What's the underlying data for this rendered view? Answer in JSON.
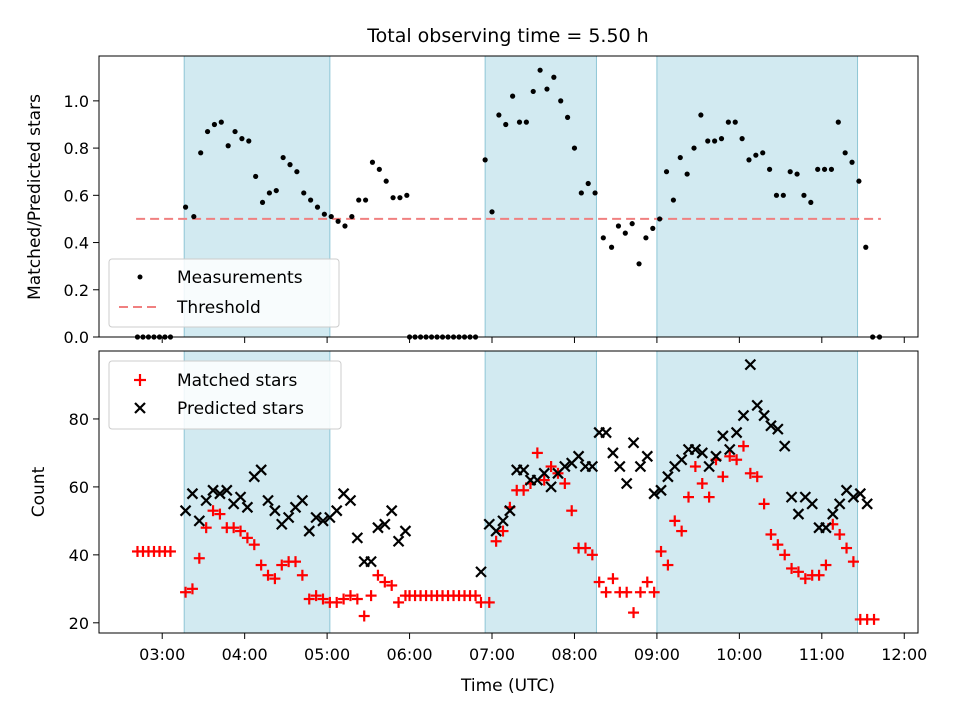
{
  "figure": {
    "title": "Total observing time = 5.50 h"
  },
  "colors": {
    "band_fill": "#add8e6",
    "band_edge": "#8fc6d6",
    "measurement": "#000000",
    "threshold": "#f08080",
    "matched": "#ff0000",
    "predicted": "#000000"
  },
  "chart_data": [
    {
      "type": "scatter",
      "panel": "top",
      "ylabel": "Matched/Predicted stars",
      "xlabel": "",
      "xlim": [
        "02:14",
        "12:10"
      ],
      "ylim": [
        0,
        1.19
      ],
      "yticks": [
        0.0,
        0.2,
        0.4,
        0.6,
        0.8,
        1.0
      ],
      "ytick_labels": [
        "0.0",
        "0.2",
        "0.4",
        "0.6",
        "0.8",
        "1.0"
      ],
      "grid": false,
      "legend_position": "lower-left",
      "legend": [
        "Measurements",
        "Threshold"
      ],
      "shaded_intervals": [
        [
          "03:16",
          "05:02"
        ],
        [
          "06:55",
          "08:16"
        ],
        [
          "09:00",
          "11:26"
        ]
      ],
      "threshold": {
        "value": 0.5,
        "x_start": "02:41",
        "x_end": "11:43"
      },
      "measurements": [
        [
          "02:42",
          0.0
        ],
        [
          "02:46",
          0.0
        ],
        [
          "02:50",
          0.0
        ],
        [
          "02:54",
          0.0
        ],
        [
          "02:58",
          0.0
        ],
        [
          "03:02",
          0.0
        ],
        [
          "03:06",
          0.0
        ],
        [
          "03:17",
          0.55
        ],
        [
          "03:23",
          0.51
        ],
        [
          "03:28",
          0.78
        ],
        [
          "03:33",
          0.87
        ],
        [
          "03:38",
          0.9
        ],
        [
          "03:43",
          0.91
        ],
        [
          "03:48",
          0.81
        ],
        [
          "03:53",
          0.87
        ],
        [
          "03:58",
          0.84
        ],
        [
          "04:03",
          0.83
        ],
        [
          "04:08",
          0.68
        ],
        [
          "04:13",
          0.57
        ],
        [
          "04:18",
          0.61
        ],
        [
          "04:23",
          0.62
        ],
        [
          "04:28",
          0.76
        ],
        [
          "04:33",
          0.73
        ],
        [
          "04:38",
          0.7
        ],
        [
          "04:43",
          0.61
        ],
        [
          "04:48",
          0.58
        ],
        [
          "04:53",
          0.55
        ],
        [
          "04:58",
          0.52
        ],
        [
          "05:03",
          0.51
        ],
        [
          "05:08",
          0.49
        ],
        [
          "05:13",
          0.47
        ],
        [
          "05:18",
          0.51
        ],
        [
          "05:23",
          0.58
        ],
        [
          "05:28",
          0.58
        ],
        [
          "05:33",
          0.74
        ],
        [
          "05:38",
          0.71
        ],
        [
          "05:43",
          0.66
        ],
        [
          "05:48",
          0.59
        ],
        [
          "05:53",
          0.59
        ],
        [
          "05:58",
          0.6
        ],
        [
          "06:00",
          0.0
        ],
        [
          "06:04",
          0.0
        ],
        [
          "06:08",
          0.0
        ],
        [
          "06:12",
          0.0
        ],
        [
          "06:16",
          0.0
        ],
        [
          "06:20",
          0.0
        ],
        [
          "06:24",
          0.0
        ],
        [
          "06:28",
          0.0
        ],
        [
          "06:32",
          0.0
        ],
        [
          "06:36",
          0.0
        ],
        [
          "06:40",
          0.0
        ],
        [
          "06:44",
          0.0
        ],
        [
          "06:48",
          0.0
        ],
        [
          "06:55",
          0.75
        ],
        [
          "07:00",
          0.53
        ],
        [
          "07:05",
          0.94
        ],
        [
          "07:10",
          0.9
        ],
        [
          "07:15",
          1.02
        ],
        [
          "07:20",
          0.91
        ],
        [
          "07:25",
          0.91
        ],
        [
          "07:30",
          1.04
        ],
        [
          "07:35",
          1.13
        ],
        [
          "07:40",
          1.05
        ],
        [
          "07:45",
          1.1
        ],
        [
          "07:50",
          1.0
        ],
        [
          "07:55",
          0.93
        ],
        [
          "08:00",
          0.8
        ],
        [
          "08:05",
          0.61
        ],
        [
          "08:10",
          0.65
        ],
        [
          "08:15",
          0.61
        ],
        [
          "08:21",
          0.42
        ],
        [
          "08:27",
          0.38
        ],
        [
          "08:32",
          0.47
        ],
        [
          "08:37",
          0.44
        ],
        [
          "08:42",
          0.48
        ],
        [
          "08:47",
          0.31
        ],
        [
          "08:52",
          0.42
        ],
        [
          "08:57",
          0.46
        ],
        [
          "09:02",
          0.5
        ],
        [
          "09:07",
          0.7
        ],
        [
          "09:12",
          0.58
        ],
        [
          "09:17",
          0.76
        ],
        [
          "09:22",
          0.69
        ],
        [
          "09:27",
          0.8
        ],
        [
          "09:32",
          0.94
        ],
        [
          "09:37",
          0.83
        ],
        [
          "09:42",
          0.83
        ],
        [
          "09:47",
          0.84
        ],
        [
          "09:52",
          0.91
        ],
        [
          "09:57",
          0.91
        ],
        [
          "10:02",
          0.84
        ],
        [
          "10:07",
          0.75
        ],
        [
          "10:12",
          0.77
        ],
        [
          "10:17",
          0.78
        ],
        [
          "10:22",
          0.71
        ],
        [
          "10:27",
          0.6
        ],
        [
          "10:32",
          0.6
        ],
        [
          "10:37",
          0.7
        ],
        [
          "10:42",
          0.69
        ],
        [
          "10:47",
          0.6
        ],
        [
          "10:52",
          0.57
        ],
        [
          "10:57",
          0.71
        ],
        [
          "11:02",
          0.71
        ],
        [
          "11:07",
          0.71
        ],
        [
          "11:12",
          0.91
        ],
        [
          "11:17",
          0.78
        ],
        [
          "11:22",
          0.74
        ],
        [
          "11:27",
          0.66
        ],
        [
          "11:32",
          0.38
        ],
        [
          "11:37",
          0.0
        ],
        [
          "11:42",
          0.0
        ]
      ]
    },
    {
      "type": "scatter",
      "panel": "bottom",
      "ylabel": "Count",
      "xlabel": "Time (UTC)",
      "xlim": [
        "02:14",
        "12:10"
      ],
      "ylim": [
        17,
        100
      ],
      "yticks": [
        20,
        40,
        60,
        80
      ],
      "ytick_labels": [
        "20",
        "40",
        "60",
        "80"
      ],
      "xticks": [
        "03:00",
        "04:00",
        "05:00",
        "06:00",
        "07:00",
        "08:00",
        "09:00",
        "10:00",
        "11:00",
        "12:00"
      ],
      "xtick_labels": [
        "03:00",
        "04:00",
        "05:00",
        "06:00",
        "07:00",
        "08:00",
        "09:00",
        "10:00",
        "11:00",
        "12:00"
      ],
      "grid": false,
      "legend_position": "upper-left",
      "legend": [
        "Matched stars",
        "Predicted stars"
      ],
      "shaded_intervals": [
        [
          "03:16",
          "05:02"
        ],
        [
          "06:55",
          "08:16"
        ],
        [
          "09:00",
          "11:26"
        ]
      ],
      "matched": [
        [
          "02:42",
          41
        ],
        [
          "02:46",
          41
        ],
        [
          "02:50",
          41
        ],
        [
          "02:54",
          41
        ],
        [
          "02:58",
          41
        ],
        [
          "03:02",
          41
        ],
        [
          "03:06",
          41
        ],
        [
          "03:17",
          29
        ],
        [
          "03:22",
          30
        ],
        [
          "03:27",
          39
        ],
        [
          "03:32",
          48
        ],
        [
          "03:37",
          53
        ],
        [
          "03:42",
          52
        ],
        [
          "03:47",
          48
        ],
        [
          "03:52",
          48
        ],
        [
          "03:57",
          47
        ],
        [
          "04:02",
          45
        ],
        [
          "04:07",
          43
        ],
        [
          "04:12",
          37
        ],
        [
          "04:17",
          34
        ],
        [
          "04:22",
          33
        ],
        [
          "04:27",
          37
        ],
        [
          "04:32",
          38
        ],
        [
          "04:37",
          38
        ],
        [
          "04:42",
          34
        ],
        [
          "04:47",
          27
        ],
        [
          "04:52",
          28
        ],
        [
          "04:57",
          27
        ],
        [
          "05:02",
          26
        ],
        [
          "05:07",
          26
        ],
        [
          "05:12",
          27
        ],
        [
          "05:17",
          28
        ],
        [
          "05:22",
          27
        ],
        [
          "05:27",
          22
        ],
        [
          "05:32",
          28
        ],
        [
          "05:37",
          34
        ],
        [
          "05:42",
          32
        ],
        [
          "05:47",
          31
        ],
        [
          "05:52",
          26
        ],
        [
          "05:57",
          28
        ],
        [
          "06:00",
          28
        ],
        [
          "06:04",
          28
        ],
        [
          "06:08",
          28
        ],
        [
          "06:12",
          28
        ],
        [
          "06:16",
          28
        ],
        [
          "06:20",
          28
        ],
        [
          "06:24",
          28
        ],
        [
          "06:28",
          28
        ],
        [
          "06:32",
          28
        ],
        [
          "06:36",
          28
        ],
        [
          "06:40",
          28
        ],
        [
          "06:44",
          28
        ],
        [
          "06:48",
          28
        ],
        [
          "06:52",
          26
        ],
        [
          "06:58",
          26
        ],
        [
          "07:03",
          44
        ],
        [
          "07:08",
          47
        ],
        [
          "07:13",
          54
        ],
        [
          "07:18",
          59
        ],
        [
          "07:23",
          59
        ],
        [
          "07:28",
          61
        ],
        [
          "07:33",
          70
        ],
        [
          "07:38",
          62
        ],
        [
          "07:43",
          66
        ],
        [
          "07:48",
          64
        ],
        [
          "07:53",
          61
        ],
        [
          "07:58",
          53
        ],
        [
          "08:03",
          42
        ],
        [
          "08:08",
          42
        ],
        [
          "08:13",
          40
        ],
        [
          "08:18",
          32
        ],
        [
          "08:23",
          29
        ],
        [
          "08:28",
          33
        ],
        [
          "08:33",
          29
        ],
        [
          "08:38",
          29
        ],
        [
          "08:43",
          23
        ],
        [
          "08:48",
          29
        ],
        [
          "08:53",
          32
        ],
        [
          "08:58",
          29
        ],
        [
          "09:03",
          41
        ],
        [
          "09:08",
          37
        ],
        [
          "09:13",
          50
        ],
        [
          "09:18",
          47
        ],
        [
          "09:23",
          57
        ],
        [
          "09:28",
          66
        ],
        [
          "09:33",
          61
        ],
        [
          "09:38",
          57
        ],
        [
          "09:43",
          68
        ],
        [
          "09:48",
          63
        ],
        [
          "09:53",
          69
        ],
        [
          "09:58",
          68
        ],
        [
          "10:03",
          72
        ],
        [
          "10:08",
          64
        ],
        [
          "10:13",
          63
        ],
        [
          "10:18",
          55
        ],
        [
          "10:23",
          46
        ],
        [
          "10:28",
          43
        ],
        [
          "10:33",
          40
        ],
        [
          "10:38",
          36
        ],
        [
          "10:43",
          35
        ],
        [
          "10:48",
          33
        ],
        [
          "10:53",
          34
        ],
        [
          "10:58",
          34
        ],
        [
          "11:03",
          37
        ],
        [
          "11:08",
          49
        ],
        [
          "11:13",
          46
        ],
        [
          "11:18",
          42
        ],
        [
          "11:23",
          38
        ],
        [
          "11:28",
          21
        ],
        [
          "11:33",
          21
        ],
        [
          "11:38",
          21
        ]
      ],
      "predicted": [
        [
          "03:17",
          53
        ],
        [
          "03:22",
          58
        ],
        [
          "03:27",
          50
        ],
        [
          "03:32",
          56
        ],
        [
          "03:37",
          59
        ],
        [
          "03:42",
          58
        ],
        [
          "03:47",
          59
        ],
        [
          "03:52",
          55
        ],
        [
          "03:57",
          57
        ],
        [
          "04:02",
          54
        ],
        [
          "04:07",
          63
        ],
        [
          "04:12",
          65
        ],
        [
          "04:17",
          56
        ],
        [
          "04:22",
          53
        ],
        [
          "04:27",
          49
        ],
        [
          "04:32",
          51
        ],
        [
          "04:37",
          54
        ],
        [
          "04:42",
          56
        ],
        [
          "04:47",
          47
        ],
        [
          "04:52",
          51
        ],
        [
          "04:57",
          50
        ],
        [
          "05:02",
          51
        ],
        [
          "05:07",
          53
        ],
        [
          "05:12",
          58
        ],
        [
          "05:17",
          56
        ],
        [
          "05:22",
          45
        ],
        [
          "05:27",
          38
        ],
        [
          "05:32",
          38
        ],
        [
          "05:37",
          48
        ],
        [
          "05:42",
          49
        ],
        [
          "05:47",
          53
        ],
        [
          "05:52",
          44
        ],
        [
          "05:57",
          47
        ],
        [
          "06:52",
          35
        ],
        [
          "06:58",
          49
        ],
        [
          "07:03",
          47
        ],
        [
          "07:08",
          50
        ],
        [
          "07:13",
          53
        ],
        [
          "07:18",
          65
        ],
        [
          "07:23",
          65
        ],
        [
          "07:28",
          62
        ],
        [
          "07:33",
          62
        ],
        [
          "07:38",
          64
        ],
        [
          "07:43",
          60
        ],
        [
          "07:48",
          64
        ],
        [
          "07:53",
          66
        ],
        [
          "07:58",
          67
        ],
        [
          "08:03",
          69
        ],
        [
          "08:08",
          66
        ],
        [
          "08:13",
          66
        ],
        [
          "08:18",
          76
        ],
        [
          "08:23",
          76
        ],
        [
          "08:28",
          70
        ],
        [
          "08:33",
          66
        ],
        [
          "08:38",
          61
        ],
        [
          "08:43",
          73
        ],
        [
          "08:48",
          66
        ],
        [
          "08:53",
          69
        ],
        [
          "08:58",
          58
        ],
        [
          "09:03",
          59
        ],
        [
          "09:08",
          63
        ],
        [
          "09:13",
          66
        ],
        [
          "09:18",
          68
        ],
        [
          "09:23",
          71
        ],
        [
          "09:28",
          71
        ],
        [
          "09:33",
          70
        ],
        [
          "09:38",
          66
        ],
        [
          "09:43",
          69
        ],
        [
          "09:48",
          75
        ],
        [
          "09:53",
          71
        ],
        [
          "09:58",
          76
        ],
        [
          "10:03",
          81
        ],
        [
          "10:08",
          96
        ],
        [
          "10:13",
          84
        ],
        [
          "10:18",
          81
        ],
        [
          "10:23",
          78
        ],
        [
          "10:28",
          77
        ],
        [
          "10:33",
          72
        ],
        [
          "10:38",
          57
        ],
        [
          "10:43",
          52
        ],
        [
          "10:48",
          57
        ],
        [
          "10:53",
          55
        ],
        [
          "10:58",
          48
        ],
        [
          "11:03",
          48
        ],
        [
          "11:08",
          52
        ],
        [
          "11:13",
          55
        ],
        [
          "11:18",
          59
        ],
        [
          "11:23",
          57
        ],
        [
          "11:28",
          58
        ],
        [
          "11:33",
          55
        ]
      ]
    }
  ]
}
